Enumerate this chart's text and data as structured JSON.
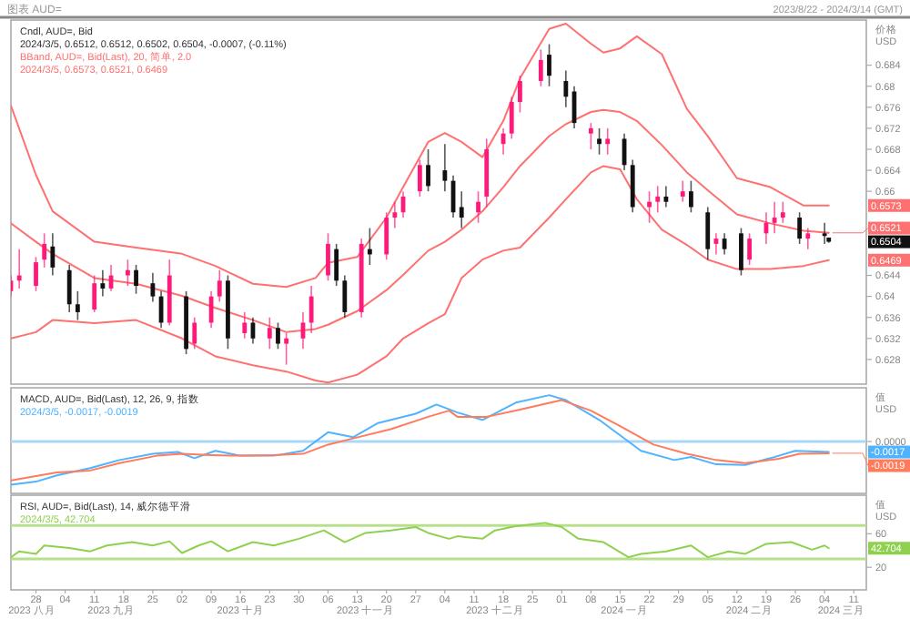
{
  "chart_data": [
    {
      "type": "other",
      "title": "图表 AUD=",
      "subtitle": "2023/8/22 - 2024/3/14 (GMT)"
    },
    {
      "type": "candlestick",
      "title": "Cndl, AUD=, Bid",
      "subtitle": "2024/3/5, 0.6512, 0.6512, 0.6502, 0.6504, -0.0007, (-0.11%)",
      "ylabel": "价格 USD",
      "tick_labels": "y",
      "xlim": [
        "2023-08-22",
        "2024-03-14"
      ],
      "ylim": [
        0.6233,
        0.6926
      ],
      "yticks": [
        0.684,
        0.68,
        0.676,
        0.672,
        0.668,
        0.664,
        0.66,
        {
          "value": 0.6573,
          "label": "0.6573"
        },
        {
          "value": 0.6504,
          "label": "0.6504"
        },
        {
          "value": 0.6469,
          "label": "0.6469"
        },
        0.644,
        0.64,
        0.636,
        0.632,
        0.628
      ],
      "x": [
        "2023-08-22",
        "2023-08-24",
        "2023-08-28",
        "2023-08-30",
        "2023-09-01",
        "2023-09-05",
        "2023-09-07",
        "2023-09-11",
        "2023-09-13",
        "2023-09-15",
        "2023-09-19",
        "2023-09-21",
        "2023-09-25",
        "2023-09-27",
        "2023-09-29",
        "2023-10-03",
        "2023-10-05",
        "2023-10-09",
        "2023-10-11",
        "2023-10-13",
        "2023-10-17",
        "2023-10-19",
        "2023-10-23",
        "2023-10-25",
        "2023-10-27",
        "2023-10-31",
        "2023-11-02",
        "2023-11-06",
        "2023-11-08",
        "2023-11-10",
        "2023-11-14",
        "2023-11-16",
        "2023-11-20",
        "2023-11-22",
        "2023-11-24",
        "2023-11-28",
        "2023-11-30",
        "2023-12-04",
        "2023-12-06",
        "2023-12-08",
        "2023-12-12",
        "2023-12-14",
        "2023-12-18",
        "2023-12-20",
        "2023-12-22",
        "2023-12-27",
        "2023-12-29",
        "2024-01-02",
        "2024-01-04",
        "2024-01-08",
        "2024-01-10",
        "2024-01-12",
        "2024-01-16",
        "2024-01-18",
        "2024-01-22",
        "2024-01-24",
        "2024-01-26",
        "2024-01-30",
        "2024-02-01",
        "2024-02-05",
        "2024-02-07",
        "2024-02-09",
        "2024-02-13",
        "2024-02-15",
        "2024-02-19",
        "2024-02-21",
        "2024-02-23",
        "2024-02-27",
        "2024-02-29",
        "2024-03-04",
        "2024-03-05"
      ],
      "ohlc": [
        [
          0.641,
          0.644,
          0.64,
          0.643
        ],
        [
          0.643,
          0.649,
          0.6415,
          0.644
        ],
        [
          0.642,
          0.6475,
          0.641,
          0.6465
        ],
        [
          0.647,
          0.652,
          0.6455,
          0.65
        ],
        [
          0.6495,
          0.652,
          0.644,
          0.6455
        ],
        [
          0.645,
          0.646,
          0.637,
          0.6385
        ],
        [
          0.6385,
          0.641,
          0.6355,
          0.637
        ],
        [
          0.6375,
          0.644,
          0.637,
          0.6425
        ],
        [
          0.6425,
          0.645,
          0.64,
          0.6415
        ],
        [
          0.6415,
          0.646,
          0.641,
          0.644
        ],
        [
          0.644,
          0.647,
          0.642,
          0.645
        ],
        [
          0.645,
          0.646,
          0.6405,
          0.642
        ],
        [
          0.6425,
          0.6445,
          0.639,
          0.64
        ],
        [
          0.64,
          0.641,
          0.634,
          0.635
        ],
        [
          0.635,
          0.647,
          0.6345,
          0.644
        ],
        [
          0.64,
          0.641,
          0.629,
          0.63
        ],
        [
          0.631,
          0.636,
          0.63,
          0.635
        ],
        [
          0.635,
          0.641,
          0.634,
          0.64
        ],
        [
          0.64,
          0.645,
          0.639,
          0.643
        ],
        [
          0.643,
          0.644,
          0.63,
          0.632
        ],
        [
          0.633,
          0.637,
          0.632,
          0.635
        ],
        [
          0.635,
          0.636,
          0.631,
          0.632
        ],
        [
          0.632,
          0.636,
          0.63,
          0.634
        ],
        [
          0.634,
          0.635,
          0.63,
          0.631
        ],
        [
          0.631,
          0.633,
          0.627,
          0.632
        ],
        [
          0.632,
          0.637,
          0.63,
          0.635
        ],
        [
          0.635,
          0.642,
          0.633,
          0.64
        ],
        [
          0.644,
          0.652,
          0.643,
          0.65
        ],
        [
          0.649,
          0.65,
          0.642,
          0.643
        ],
        [
          0.643,
          0.644,
          0.636,
          0.637
        ],
        [
          0.637,
          0.651,
          0.636,
          0.65
        ],
        [
          0.649,
          0.653,
          0.646,
          0.648
        ],
        [
          0.648,
          0.656,
          0.647,
          0.655
        ],
        [
          0.655,
          0.658,
          0.653,
          0.656
        ],
        [
          0.656,
          0.66,
          0.655,
          0.659
        ],
        [
          0.66,
          0.666,
          0.659,
          0.665
        ],
        [
          0.665,
          0.668,
          0.66,
          0.661
        ],
        [
          0.664,
          0.669,
          0.66,
          0.662
        ],
        [
          0.662,
          0.663,
          0.655,
          0.656
        ],
        [
          0.657,
          0.66,
          0.653,
          0.655
        ],
        [
          0.656,
          0.66,
          0.654,
          0.658
        ],
        [
          0.659,
          0.67,
          0.657,
          0.668
        ],
        [
          0.669,
          0.672,
          0.667,
          0.671
        ],
        [
          0.671,
          0.678,
          0.67,
          0.677
        ],
        [
          0.677,
          0.682,
          0.675,
          0.681
        ],
        [
          0.681,
          0.687,
          0.68,
          0.685
        ],
        [
          0.686,
          0.688,
          0.68,
          0.682
        ],
        [
          0.681,
          0.683,
          0.676,
          0.678
        ],
        [
          0.679,
          0.68,
          0.672,
          0.673
        ],
        [
          0.671,
          0.673,
          0.668,
          0.672
        ],
        [
          0.67,
          0.672,
          0.667,
          0.669
        ],
        [
          0.669,
          0.672,
          0.667,
          0.67
        ],
        [
          0.67,
          0.671,
          0.664,
          0.665
        ],
        [
          0.665,
          0.666,
          0.656,
          0.657
        ],
        [
          0.657,
          0.66,
          0.654,
          0.658
        ],
        [
          0.658,
          0.661,
          0.656,
          0.659
        ],
        [
          0.659,
          0.661,
          0.657,
          0.658
        ],
        [
          0.659,
          0.662,
          0.658,
          0.66
        ],
        [
          0.66,
          0.662,
          0.656,
          0.657
        ],
        [
          0.656,
          0.657,
          0.647,
          0.649
        ],
        [
          0.65,
          0.652,
          0.648,
          0.651
        ],
        [
          0.651,
          0.652,
          0.648,
          0.649
        ],
        [
          0.652,
          0.653,
          0.644,
          0.645
        ],
        [
          0.647,
          0.652,
          0.646,
          0.651
        ],
        [
          0.652,
          0.656,
          0.65,
          0.654
        ],
        [
          0.654,
          0.658,
          0.652,
          0.655
        ],
        [
          0.655,
          0.658,
          0.654,
          0.656
        ],
        [
          0.655,
          0.656,
          0.65,
          0.651
        ],
        [
          0.651,
          0.653,
          0.649,
          0.652
        ],
        [
          0.652,
          0.654,
          0.65,
          0.6515
        ],
        [
          0.6512,
          0.6512,
          0.6502,
          0.6504
        ]
      ],
      "colors": [
        "#ff1a7a",
        "#ff1a7a",
        "#ff1a7a",
        "#ff1a7a",
        "#111111",
        "#111111",
        "#111111",
        "#ff1a7a",
        "#111111",
        "#ff1a7a",
        "#ff1a7a",
        "#111111",
        "#111111",
        "#111111",
        "#ff1a7a",
        "#111111",
        "#ff1a7a",
        "#ff1a7a",
        "#ff1a7a",
        "#111111",
        "#ff1a7a",
        "#111111",
        "#ff1a7a",
        "#111111",
        "#ff1a7a",
        "#ff1a7a",
        "#ff1a7a",
        "#ff1a7a",
        "#111111",
        "#111111",
        "#ff1a7a",
        "#111111",
        "#ff1a7a",
        "#ff1a7a",
        "#ff1a7a",
        "#ff1a7a",
        "#111111",
        "#111111",
        "#111111",
        "#111111",
        "#ff1a7a",
        "#ff1a7a",
        "#ff1a7a",
        "#ff1a7a",
        "#ff1a7a",
        "#ff1a7a",
        "#111111",
        "#111111",
        "#111111",
        "#ff1a7a",
        "#111111",
        "#ff1a7a",
        "#111111",
        "#111111",
        "#ff1a7a",
        "#ff1a7a",
        "#111111",
        "#ff1a7a",
        "#111111",
        "#111111",
        "#ff1a7a",
        "#111111",
        "#111111",
        "#ff1a7a",
        "#ff1a7a",
        "#ff1a7a",
        "#ff1a7a",
        "#111111",
        "#ff1a7a",
        "#111111",
        "#111111"
      ],
      "series": [
        {
          "type": "line",
          "color": "#ff7070",
          "x": [
            "2023-08-22",
            "2023-08-28",
            "2023-09-01",
            "2023-09-11",
            "2023-09-21",
            "2023-10-02",
            "2023-10-10",
            "2023-10-19",
            "2023-10-27",
            "2023-11-03",
            "2023-11-06",
            "2023-11-13",
            "2023-11-20",
            "2023-11-24",
            "2023-11-30",
            "2023-12-04",
            "2023-12-08",
            "2023-12-13",
            "2023-12-18",
            "2023-12-22",
            "2023-12-29",
            "2024-01-02",
            "2024-01-08",
            "2024-01-11",
            "2024-01-15",
            "2024-01-19",
            "2024-01-25",
            "2024-01-31",
            "2024-02-05",
            "2024-02-12",
            "2024-02-20",
            "2024-02-28",
            "2024-03-05"
          ],
          "values": [
            0.6763,
            0.6631,
            0.6562,
            0.6504,
            0.6493,
            0.6481,
            0.6458,
            0.6424,
            0.6418,
            0.6435,
            0.6464,
            0.6475,
            0.655,
            0.6608,
            0.6694,
            0.6711,
            0.6694,
            0.6665,
            0.6734,
            0.6815,
            0.6909,
            0.6919,
            0.6881,
            0.6864,
            0.6872,
            0.6895,
            0.6861,
            0.6757,
            0.6705,
            0.6625,
            0.6608,
            0.6573,
            0.6573
          ]
        },
        {
          "type": "line",
          "color": "#ff7070",
          "x": [
            "2023-08-22",
            "2023-08-28",
            "2023-09-01",
            "2023-09-11",
            "2023-09-21",
            "2023-10-02",
            "2023-10-10",
            "2023-10-19",
            "2023-10-27",
            "2023-11-03",
            "2023-11-06",
            "2023-11-13",
            "2023-11-20",
            "2023-11-24",
            "2023-11-30",
            "2023-12-04",
            "2023-12-08",
            "2023-12-13",
            "2023-12-18",
            "2023-12-22",
            "2023-12-29",
            "2024-01-02",
            "2024-01-08",
            "2024-01-11",
            "2024-01-15",
            "2024-01-19",
            "2024-01-25",
            "2024-01-31",
            "2024-02-05",
            "2024-02-12",
            "2024-02-20",
            "2024-02-28",
            "2024-03-05"
          ],
          "values": [
            0.6539,
            0.6504,
            0.6481,
            0.6435,
            0.6424,
            0.6401,
            0.6378,
            0.6355,
            0.6332,
            0.6338,
            0.6346,
            0.6372,
            0.6412,
            0.6441,
            0.6487,
            0.6504,
            0.6527,
            0.6562,
            0.6608,
            0.6648,
            0.6705,
            0.6728,
            0.6751,
            0.6755,
            0.6751,
            0.6734,
            0.6688,
            0.6636,
            0.6602,
            0.6556,
            0.6539,
            0.6525,
            0.6521
          ]
        },
        {
          "type": "line",
          "color": "#ff7070",
          "x": [
            "2023-08-22",
            "2023-08-28",
            "2023-09-01",
            "2023-09-11",
            "2023-09-21",
            "2023-10-02",
            "2023-10-10",
            "2023-10-19",
            "2023-10-27",
            "2023-11-03",
            "2023-11-06",
            "2023-11-13",
            "2023-11-20",
            "2023-11-24",
            "2023-11-30",
            "2023-12-04",
            "2023-12-08",
            "2023-12-13",
            "2023-12-18",
            "2023-12-22",
            "2023-12-29",
            "2024-01-02",
            "2024-01-08",
            "2024-01-11",
            "2024-01-15",
            "2024-01-19",
            "2024-01-25",
            "2024-01-31",
            "2024-02-05",
            "2024-02-12",
            "2024-02-20",
            "2024-02-28",
            "2024-03-05"
          ],
          "values": [
            0.632,
            0.6332,
            0.6355,
            0.6349,
            0.6355,
            0.632,
            0.6286,
            0.6269,
            0.6257,
            0.624,
            0.6236,
            0.6251,
            0.6286,
            0.632,
            0.6349,
            0.6366,
            0.6435,
            0.647,
            0.6487,
            0.6493,
            0.655,
            0.6585,
            0.6636,
            0.6648,
            0.6642,
            0.6585,
            0.6527,
            0.6498,
            0.647,
            0.6452,
            0.6452,
            0.6458,
            0.6469
          ]
        }
      ],
      "annotations": [
        "BBand, AUD=, Bid(Last), 20, 简单, 2.0",
        "2024/3/5, 0.6573, 0.6521, 0.6469",
        {
          "text": "0.6521",
          "x": "2024-03-05",
          "y": 0.6521
        }
      ]
    },
    {
      "type": "line",
      "title": "MACD, AUD=, Bid(Last), 12, 26, 9, 指数",
      "subtitle": "2024/3/5, -0.0017, -0.0019",
      "ylabel": "值 USD",
      "tick_labels": "y",
      "xlim": [
        "2023-08-22",
        "2024-03-14"
      ],
      "ylim": [
        -0.0084,
        0.0087
      ],
      "yticks": [
        {
          "value": 0,
          "label": "0.0000"
        },
        {
          "value": -0.0017,
          "label": "-0.0017"
        }
      ],
      "annotations": [
        {
          "text": "-0.0019",
          "x": "2024-03-05",
          "y": -0.0019
        }
      ],
      "ref_lines": [
        {
          "axis": "y",
          "value": 0,
          "color": "#a8d8f8"
        }
      ],
      "series": [
        {
          "color": "#4fb3ff",
          "x": [
            "2023-08-22",
            "2023-08-28",
            "2023-09-02",
            "2023-09-10",
            "2023-09-17",
            "2023-09-25",
            "2023-10-01",
            "2023-10-05",
            "2023-10-10",
            "2023-10-16",
            "2023-10-24",
            "2023-10-31",
            "2023-11-06",
            "2023-11-12",
            "2023-11-18",
            "2023-11-27",
            "2023-12-02",
            "2023-12-07",
            "2023-12-13",
            "2023-12-21",
            "2023-12-29",
            "2024-01-02",
            "2024-01-10",
            "2024-01-15",
            "2024-01-20",
            "2024-01-28",
            "2024-02-01",
            "2024-02-07",
            "2024-02-14",
            "2024-02-20",
            "2024-02-26",
            "2024-03-05"
          ],
          "values": [
            -0.007,
            -0.0065,
            -0.0055,
            -0.0043,
            -0.003,
            -0.002,
            -0.0017,
            -0.0027,
            -0.0015,
            -0.0023,
            -0.0023,
            -0.0015,
            0.0015,
            0.0007,
            0.003,
            0.0045,
            0.006,
            0.0047,
            0.0035,
            0.0063,
            0.0075,
            0.0067,
            0.0035,
            0.001,
            -0.0015,
            -0.003,
            -0.0025,
            -0.0037,
            -0.0038,
            -0.0027,
            -0.0015,
            -0.0017
          ]
        },
        {
          "color": "#ff7b5c",
          "x": [
            "2023-08-22",
            "2023-09-02",
            "2023-09-10",
            "2023-09-17",
            "2023-09-26",
            "2023-10-02",
            "2023-10-09",
            "2023-10-16",
            "2023-10-24",
            "2023-10-31",
            "2023-11-06",
            "2023-11-12",
            "2023-11-21",
            "2023-11-30",
            "2023-12-05",
            "2023-12-07",
            "2023-12-14",
            "2023-12-21",
            "2024-01-01",
            "2024-01-08",
            "2024-01-15",
            "2024-01-23",
            "2024-01-31",
            "2024-02-07",
            "2024-02-14",
            "2024-02-22",
            "2024-02-27",
            "2024-03-05"
          ],
          "values": [
            -0.0063,
            -0.005,
            -0.0047,
            -0.0035,
            -0.0023,
            -0.002,
            -0.0022,
            -0.0023,
            -0.0022,
            -0.002,
            -0.0005,
            0.0005,
            0.002,
            0.004,
            0.005,
            0.004,
            0.004,
            0.005,
            0.0067,
            0.005,
            0.0025,
            -0.0005,
            -0.002,
            -0.003,
            -0.0035,
            -0.0028,
            -0.002,
            -0.0019
          ]
        }
      ]
    },
    {
      "type": "line",
      "title": "RSI, AUD=, Bid(Last), 14, 威尔德平滑",
      "subtitle": "2024/3/5, 42.704",
      "ylabel": "值 USD",
      "xlim": [
        "2023-08-22",
        "2024-03-14"
      ],
      "ylim": [
        -7,
        106
      ],
      "yticks": [
        60,
        {
          "value": 42.704,
          "label": "42.704"
        },
        20
      ],
      "xticks": [
        {
          "value": "2023-08-28",
          "label": "28"
        },
        {
          "value": "2023-09-04",
          "label": "04"
        },
        {
          "value": "2023-09-11",
          "label": "11"
        },
        {
          "value": "2023-09-18",
          "label": "18"
        },
        {
          "value": "2023-09-25",
          "label": "25"
        },
        {
          "value": "2023-10-02",
          "label": "02"
        },
        {
          "value": "2023-10-09",
          "label": "09"
        },
        {
          "value": "2023-10-16",
          "label": "16"
        },
        {
          "value": "2023-10-23",
          "label": "23"
        },
        {
          "value": "2023-10-30",
          "label": "30"
        },
        {
          "value": "2023-11-06",
          "label": "06"
        },
        {
          "value": "2023-11-13",
          "label": "13"
        },
        {
          "value": "2023-11-20",
          "label": "20"
        },
        {
          "value": "2023-11-27",
          "label": "27"
        },
        {
          "value": "2023-12-04",
          "label": "04"
        },
        {
          "value": "2023-12-11",
          "label": "11"
        },
        {
          "value": "2023-12-18",
          "label": "18"
        },
        {
          "value": "2023-12-25",
          "label": "25"
        },
        {
          "value": "2024-01-01",
          "label": "01"
        },
        {
          "value": "2024-01-08",
          "label": "08"
        },
        {
          "value": "2024-01-15",
          "label": "15"
        },
        {
          "value": "2024-01-22",
          "label": "22"
        },
        {
          "value": "2024-01-29",
          "label": "29"
        },
        {
          "value": "2024-02-05",
          "label": "05"
        },
        {
          "value": "2024-02-12",
          "label": "12"
        },
        {
          "value": "2024-02-19",
          "label": "19"
        },
        {
          "value": "2024-02-26",
          "label": "26"
        },
        {
          "value": "2024-03-04",
          "label": "04"
        },
        {
          "value": "2024-03-11",
          "label": "11"
        }
      ],
      "x2lim": [
        "2023-08-22",
        "2024-03-14"
      ],
      "x2ticks": [
        {
          "value": "2023-08-27",
          "label": "2023 八月"
        },
        {
          "value": "2023-09-15",
          "label": "2023 九月"
        },
        {
          "value": "2023-10-16",
          "label": "2023 十月"
        },
        {
          "value": "2023-11-15",
          "label": "2023 十一月"
        },
        {
          "value": "2023-12-16",
          "label": "2023 十二月"
        },
        {
          "value": "2024-01-16",
          "label": "2024 一月"
        },
        {
          "value": "2024-02-15",
          "label": "2024 二月"
        },
        {
          "value": "2024-03-08",
          "label": "2024 三月"
        }
      ],
      "ref_lines": [
        {
          "axis": "y",
          "value": 70,
          "color": "#b8e08c"
        },
        {
          "axis": "y",
          "value": 30,
          "color": "#b8e08c"
        }
      ],
      "series": [
        {
          "color": "#8fd14f",
          "x": [
            "2023-08-22",
            "2023-08-24",
            "2023-08-28",
            "2023-08-30",
            "2023-09-05",
            "2023-09-10",
            "2023-09-14",
            "2023-09-20",
            "2023-09-25",
            "2023-09-29",
            "2023-10-02",
            "2023-10-06",
            "2023-10-09",
            "2023-10-13",
            "2023-10-19",
            "2023-10-24",
            "2023-10-30",
            "2023-11-05",
            "2023-11-10",
            "2023-11-15",
            "2023-11-21",
            "2023-11-27",
            "2023-11-30",
            "2023-12-05",
            "2023-12-07",
            "2023-12-13",
            "2023-12-16",
            "2023-12-21",
            "2023-12-28",
            "2024-01-01",
            "2024-01-05",
            "2024-01-11",
            "2024-01-17",
            "2024-01-20",
            "2024-01-26",
            "2024-02-01",
            "2024-02-05",
            "2024-02-10",
            "2024-02-14",
            "2024-02-19",
            "2024-02-25",
            "2024-03-01",
            "2024-03-04",
            "2024-03-05"
          ],
          "values": [
            32,
            39,
            36,
            46,
            43,
            39,
            46,
            50,
            46,
            51,
            37,
            46,
            51,
            39,
            50,
            46,
            54,
            64,
            50,
            61,
            64,
            68,
            61,
            54,
            57,
            54,
            64,
            69,
            73,
            68,
            54,
            50,
            32,
            36,
            39,
            46,
            32,
            39,
            36,
            48,
            50,
            41,
            46,
            42.704
          ]
        }
      ]
    }
  ]
}
